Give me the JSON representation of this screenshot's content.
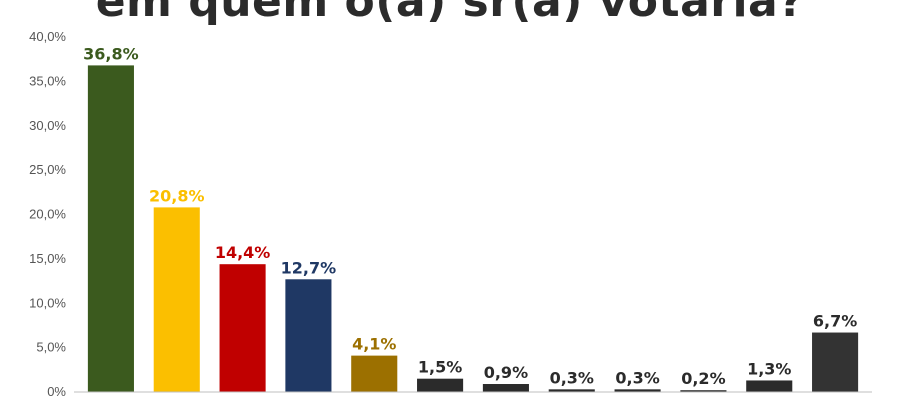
{
  "chart_data": {
    "type": "bar",
    "title": "em quem o(a) sr(a) votaria?",
    "categories": [
      "",
      "",
      "",
      "",
      "",
      "",
      "",
      "",
      "",
      "",
      "",
      ""
    ],
    "values": [
      36.8,
      20.8,
      14.4,
      12.7,
      4.1,
      1.5,
      0.9,
      0.3,
      0.3,
      0.2,
      1.3,
      6.7
    ],
    "value_labels": [
      "36,8%",
      "20,8%",
      "14,4%",
      "12,7%",
      "4,1%",
      "1,5%",
      "0,9%",
      "0,3%",
      "0,3%",
      "0,2%",
      "1,3%",
      "6,7%"
    ],
    "colors": [
      "#3b5a1e",
      "#fbbf00",
      "#c00000",
      "#1f3864",
      "#9c7000",
      "#2b2b2b",
      "#2b2b2b",
      "#2b2b2b",
      "#2b2b2b",
      "#2b2b2b",
      "#2b2b2b",
      "#333333"
    ],
    "label_colors": [
      "#3b5a1e",
      "#fbbf00",
      "#c00000",
      "#1f3864",
      "#9c7000",
      "#2b2b2b",
      "#2b2b2b",
      "#2b2b2b",
      "#2b2b2b",
      "#2b2b2b",
      "#2b2b2b",
      "#2b2b2b"
    ],
    "ylim": [
      0,
      40
    ],
    "yticks": [
      0,
      5,
      10,
      15,
      20,
      25,
      30,
      35,
      40
    ],
    "ytick_labels": [
      "0%",
      "5,0%",
      "10,0%",
      "15,0%",
      "20,0%",
      "25,0%",
      "30,0%",
      "35,0%",
      "40,0%"
    ],
    "xlabel": "",
    "ylabel": "",
    "grid": false,
    "legend": "none"
  }
}
